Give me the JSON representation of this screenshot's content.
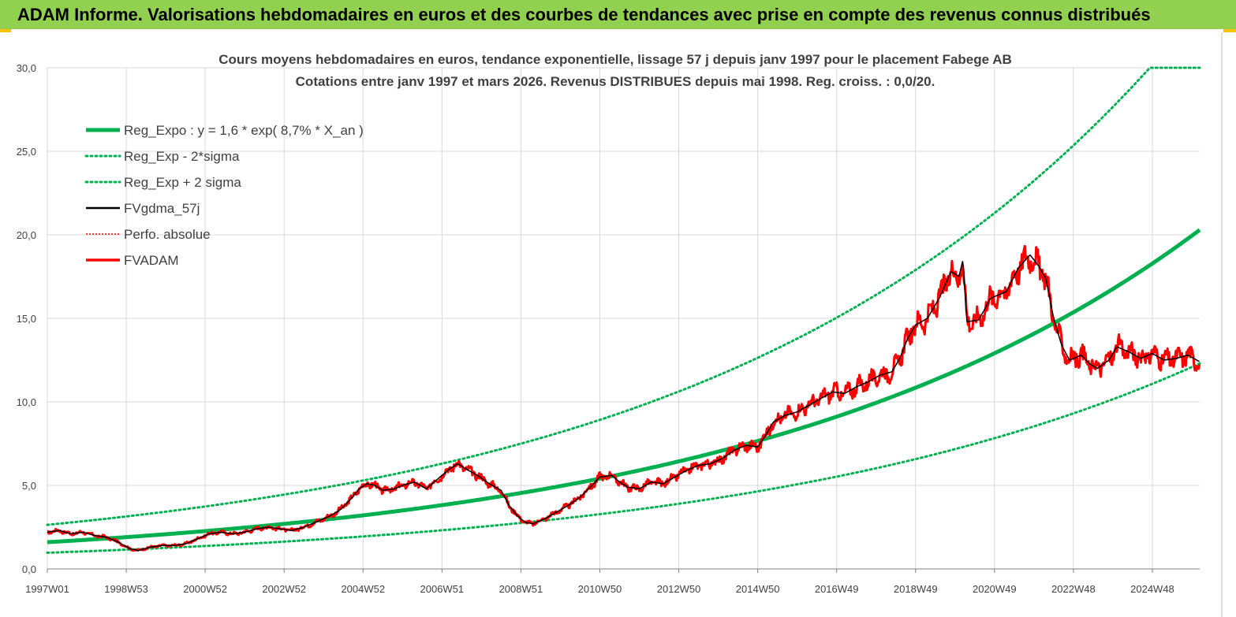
{
  "banner": {
    "title": "ADAM Informe. Valorisations hebdomadaires en euros et des courbes de tendances avec prise en compte des revenus connus distribués"
  },
  "colors": {
    "banner_bg": "#92d050",
    "banner_accent": "#ffc000",
    "regression": "#00b050",
    "fvgdma": "#000000",
    "fvadam": "#ff0000",
    "gridline": "#d9d9d9"
  },
  "chart_data": {
    "type": "line",
    "title_line1": "Cours moyens hebdomadaires en euros, tendance exponentielle, lissage 57 j depuis janv 1997 pour le placement Fabege AB",
    "title_line2": "Cotations entre janv 1997 et mars 2026. Revenus DISTRIBUES depuis mai 1998. Reg. croiss. : 0,0/20.",
    "xlim": [
      1997.0,
      2026.2
    ],
    "ylim": [
      0,
      30
    ],
    "yticks": [
      "0,0",
      "5,0",
      "10,0",
      "15,0",
      "20,0",
      "25,0",
      "30,0"
    ],
    "xticks": [
      {
        "label": "1997W01",
        "x": 1997.0
      },
      {
        "label": "1998W53",
        "x": 1999.0
      },
      {
        "label": "2000W52",
        "x": 2001.0
      },
      {
        "label": "2002W52",
        "x": 2003.0
      },
      {
        "label": "2004W52",
        "x": 2005.0
      },
      {
        "label": "2006W51",
        "x": 2007.0
      },
      {
        "label": "2008W51",
        "x": 2009.0
      },
      {
        "label": "2010W50",
        "x": 2011.0
      },
      {
        "label": "2012W50",
        "x": 2013.0
      },
      {
        "label": "2014W50",
        "x": 2015.0
      },
      {
        "label": "2016W49",
        "x": 2017.0
      },
      {
        "label": "2018W49",
        "x": 2019.0
      },
      {
        "label": "2020W49",
        "x": 2021.0
      },
      {
        "label": "2022W48",
        "x": 2023.0
      },
      {
        "label": "2024W48",
        "x": 2025.0
      }
    ],
    "grid": true,
    "legend_position": "top-left",
    "regression": {
      "a": 1.6,
      "rate": 0.087,
      "sigma_factor": 1.65
    },
    "series": [
      {
        "name": "Reg_Expo : y = 1,6 * exp( 8,7% *  X_an )",
        "style": "solid-thick",
        "color": "#00b050"
      },
      {
        "name": "Reg_Exp - 2*sigma",
        "style": "dotted",
        "color": "#00b050"
      },
      {
        "name": "Reg_Exp + 2 sigma",
        "style": "dotted",
        "color": "#00b050"
      },
      {
        "name": "FVgdma_57j",
        "style": "solid-thin",
        "color": "#000000"
      },
      {
        "name": "Perfo. absolue",
        "style": "dotted",
        "color": "#ff0000"
      },
      {
        "name": "FVADAM",
        "style": "solid",
        "color": "#ff0000"
      }
    ],
    "price_points": [
      [
        1997.0,
        2.2
      ],
      [
        1997.3,
        2.3
      ],
      [
        1997.6,
        2.1
      ],
      [
        1997.9,
        2.2
      ],
      [
        1998.2,
        2.0
      ],
      [
        1998.5,
        1.9
      ],
      [
        1998.8,
        1.6
      ],
      [
        1999.1,
        1.2
      ],
      [
        1999.3,
        1.1
      ],
      [
        1999.6,
        1.3
      ],
      [
        1999.9,
        1.4
      ],
      [
        2000.2,
        1.4
      ],
      [
        2000.5,
        1.5
      ],
      [
        2000.8,
        1.8
      ],
      [
        2001.1,
        2.1
      ],
      [
        2001.4,
        2.2
      ],
      [
        2001.7,
        2.1
      ],
      [
        2002.0,
        2.2
      ],
      [
        2002.3,
        2.4
      ],
      [
        2002.6,
        2.5
      ],
      [
        2002.9,
        2.4
      ],
      [
        2003.2,
        2.3
      ],
      [
        2003.5,
        2.5
      ],
      [
        2003.8,
        2.8
      ],
      [
        2004.1,
        3.1
      ],
      [
        2004.4,
        3.5
      ],
      [
        2004.7,
        4.2
      ],
      [
        2004.9,
        4.8
      ],
      [
        2005.1,
        5.1
      ],
      [
        2005.3,
        5.0
      ],
      [
        2005.5,
        4.7
      ],
      [
        2005.8,
        4.8
      ],
      [
        2006.0,
        5.0
      ],
      [
        2006.3,
        5.2
      ],
      [
        2006.6,
        4.8
      ],
      [
        2006.9,
        5.4
      ],
      [
        2007.2,
        6.0
      ],
      [
        2007.4,
        6.3
      ],
      [
        2007.6,
        6.0
      ],
      [
        2007.9,
        5.6
      ],
      [
        2008.2,
        5.1
      ],
      [
        2008.5,
        4.7
      ],
      [
        2008.7,
        3.8
      ],
      [
        2008.9,
        3.2
      ],
      [
        2009.1,
        2.8
      ],
      [
        2009.3,
        2.7
      ],
      [
        2009.6,
        3.0
      ],
      [
        2009.9,
        3.4
      ],
      [
        2010.2,
        3.8
      ],
      [
        2010.5,
        4.3
      ],
      [
        2010.8,
        5.0
      ],
      [
        2011.0,
        5.5
      ],
      [
        2011.3,
        5.6
      ],
      [
        2011.5,
        5.2
      ],
      [
        2011.7,
        4.9
      ],
      [
        2012.0,
        4.8
      ],
      [
        2012.3,
        5.2
      ],
      [
        2012.6,
        5.1
      ],
      [
        2012.9,
        5.5
      ],
      [
        2013.2,
        5.9
      ],
      [
        2013.5,
        6.2
      ],
      [
        2013.8,
        6.3
      ],
      [
        2014.1,
        6.6
      ],
      [
        2014.4,
        7.1
      ],
      [
        2014.7,
        7.4
      ],
      [
        2015.0,
        7.3
      ],
      [
        2015.2,
        8.0
      ],
      [
        2015.4,
        8.8
      ],
      [
        2015.7,
        9.2
      ],
      [
        2016.0,
        9.4
      ],
      [
        2016.3,
        9.8
      ],
      [
        2016.6,
        10.2
      ],
      [
        2016.9,
        10.6
      ],
      [
        2017.2,
        10.5
      ],
      [
        2017.5,
        10.9
      ],
      [
        2017.8,
        11.2
      ],
      [
        2018.1,
        11.6
      ],
      [
        2018.4,
        11.8
      ],
      [
        2018.6,
        12.6
      ],
      [
        2018.8,
        13.8
      ],
      [
        2019.0,
        14.6
      ],
      [
        2019.3,
        15.0
      ],
      [
        2019.6,
        16.2
      ],
      [
        2019.9,
        17.8
      ],
      [
        2020.1,
        17.5
      ],
      [
        2020.2,
        18.5
      ],
      [
        2020.3,
        14.8
      ],
      [
        2020.6,
        14.9
      ],
      [
        2020.9,
        16.2
      ],
      [
        2021.1,
        16.4
      ],
      [
        2021.3,
        16.6
      ],
      [
        2021.6,
        18.0
      ],
      [
        2021.9,
        18.8
      ],
      [
        2022.1,
        18.2
      ],
      [
        2022.3,
        17.4
      ],
      [
        2022.5,
        15.0
      ],
      [
        2022.7,
        13.4
      ],
      [
        2022.9,
        12.5
      ],
      [
        2023.2,
        12.8
      ],
      [
        2023.4,
        12.3
      ],
      [
        2023.6,
        12.0
      ],
      [
        2023.9,
        12.5
      ],
      [
        2024.1,
        13.3
      ],
      [
        2024.4,
        13.0
      ],
      [
        2024.7,
        12.6
      ],
      [
        2025.0,
        12.9
      ],
      [
        2025.3,
        12.5
      ],
      [
        2025.6,
        12.6
      ],
      [
        2025.9,
        12.8
      ],
      [
        2026.2,
        12.4
      ]
    ]
  }
}
